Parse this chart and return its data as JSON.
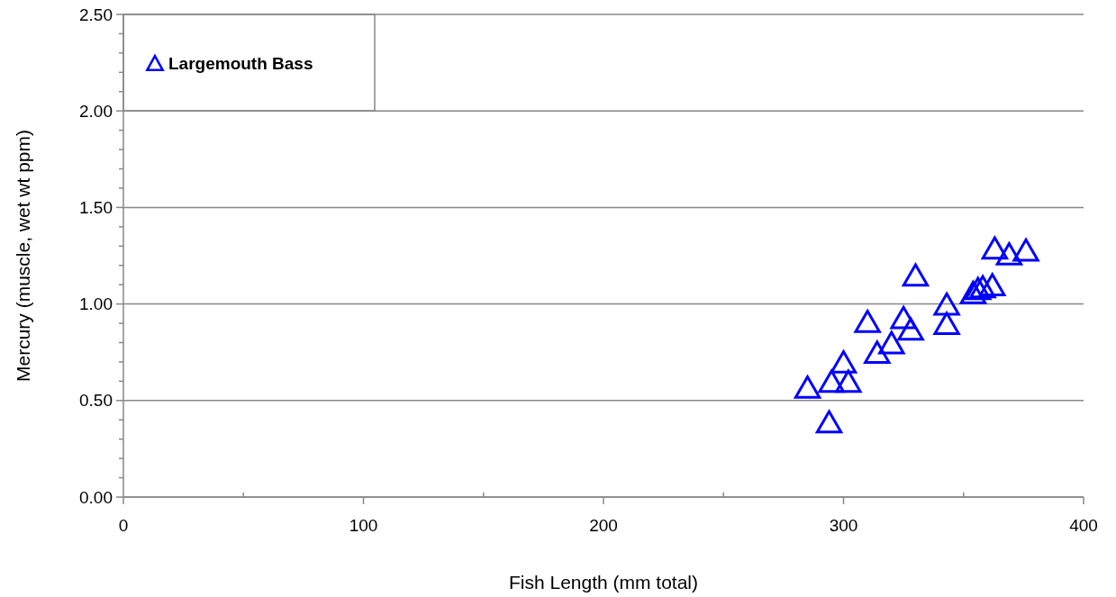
{
  "chart_data": {
    "type": "scatter",
    "xlabel": "Fish Length (mm total)",
    "ylabel": "Mercury (muscle, wet wt ppm)",
    "x": [
      285,
      294,
      295,
      300,
      302,
      310,
      314,
      320,
      325,
      328,
      330,
      343,
      343,
      354,
      356,
      358,
      362,
      363,
      369,
      376
    ],
    "series": [
      {
        "name": "Largemouth Bass",
        "color": "#0000ff",
        "values": [
          0.57,
          0.39,
          0.6,
          0.7,
          0.6,
          0.91,
          0.75,
          0.8,
          0.93,
          0.87,
          1.15,
          1.0,
          0.9,
          1.06,
          1.08,
          1.09,
          1.1,
          1.29,
          1.26,
          1.28
        ]
      }
    ],
    "marker": "triangle",
    "legend": "top left",
    "grid": "y",
    "xlim": [
      0,
      400
    ],
    "xticks": [
      0,
      {
        "value": 50,
        "label": null
      },
      100,
      {
        "value": 150,
        "label": null
      },
      200,
      {
        "value": 250,
        "label": null
      },
      300,
      {
        "value": 350,
        "label": null
      },
      400
    ],
    "ylim": [
      0,
      2.5
    ],
    "yticks": [
      {
        "value": 0,
        "label": "0.00"
      },
      {
        "value": 0.1,
        "label": null
      },
      {
        "value": 0.2,
        "label": null
      },
      {
        "value": 0.3,
        "label": null
      },
      {
        "value": 0.4,
        "label": null
      },
      {
        "value": 0.5,
        "label": "0.50"
      },
      {
        "value": 0.6,
        "label": null
      },
      {
        "value": 0.7,
        "label": null
      },
      {
        "value": 0.8,
        "label": null
      },
      {
        "value": 0.9,
        "label": null
      },
      {
        "value": 1.0,
        "label": "1.00"
      },
      {
        "value": 1.1,
        "label": null
      },
      {
        "value": 1.2,
        "label": null
      },
      {
        "value": 1.3,
        "label": null
      },
      {
        "value": 1.4,
        "label": null
      },
      {
        "value": 1.5,
        "label": "1.50"
      },
      {
        "value": 1.6,
        "label": null
      },
      {
        "value": 1.7,
        "label": null
      },
      {
        "value": 1.8,
        "label": null
      },
      {
        "value": 1.9,
        "label": null
      },
      {
        "value": 2.0,
        "label": "2.00"
      },
      {
        "value": 2.1,
        "label": null
      },
      {
        "value": 2.2,
        "label": null
      },
      {
        "value": 2.3,
        "label": null
      },
      {
        "value": 2.4,
        "label": null
      },
      {
        "value": 2.5,
        "label": "2.50"
      }
    ]
  }
}
